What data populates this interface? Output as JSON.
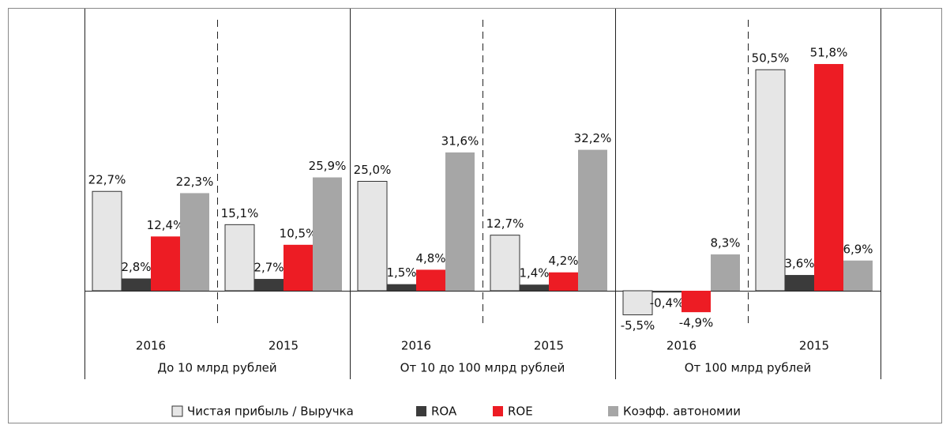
{
  "chart_data": {
    "type": "bar",
    "categories": [
      "2016",
      "2015",
      "2016",
      "2015",
      "2016",
      "2015"
    ],
    "groups": [
      "До 10 млрд рублей",
      "От 10 до 100 млрд рублей",
      "От 100 млрд рублей"
    ],
    "series": [
      {
        "name": "Чистая прибыль / Выручка",
        "color": "#e6e6e6",
        "values": [
          22.7,
          15.1,
          25.0,
          12.7,
          -5.5,
          50.5
        ],
        "value_labels": [
          "22,7%",
          "15,1%",
          "25,0%",
          "12,7%",
          "-5,5%",
          "50,5%"
        ]
      },
      {
        "name": "ROA",
        "color": "#3b3b3b",
        "values": [
          2.8,
          2.7,
          1.5,
          1.4,
          -0.4,
          3.6
        ],
        "value_labels": [
          "2,8%",
          "2,7%",
          "1,5%",
          "1,4%",
          "-0,4%",
          "3,6%"
        ]
      },
      {
        "name": "ROE",
        "color": "#ed1c24",
        "values": [
          12.4,
          10.5,
          4.8,
          4.2,
          -4.9,
          51.8
        ],
        "value_labels": [
          "12,4%",
          "10,5%",
          "4,8%",
          "4,2%",
          "-4,9%",
          "51,8%"
        ]
      },
      {
        "name": "Коэфф. автономии",
        "color": "#a6a6a6",
        "values": [
          22.3,
          25.9,
          31.6,
          32.2,
          8.3,
          6.9
        ],
        "value_labels": [
          "22,3%",
          "25,9%",
          "31,6%",
          "32,2%",
          "8,3%",
          "6,9%"
        ]
      }
    ],
    "legend": "bottom"
  }
}
